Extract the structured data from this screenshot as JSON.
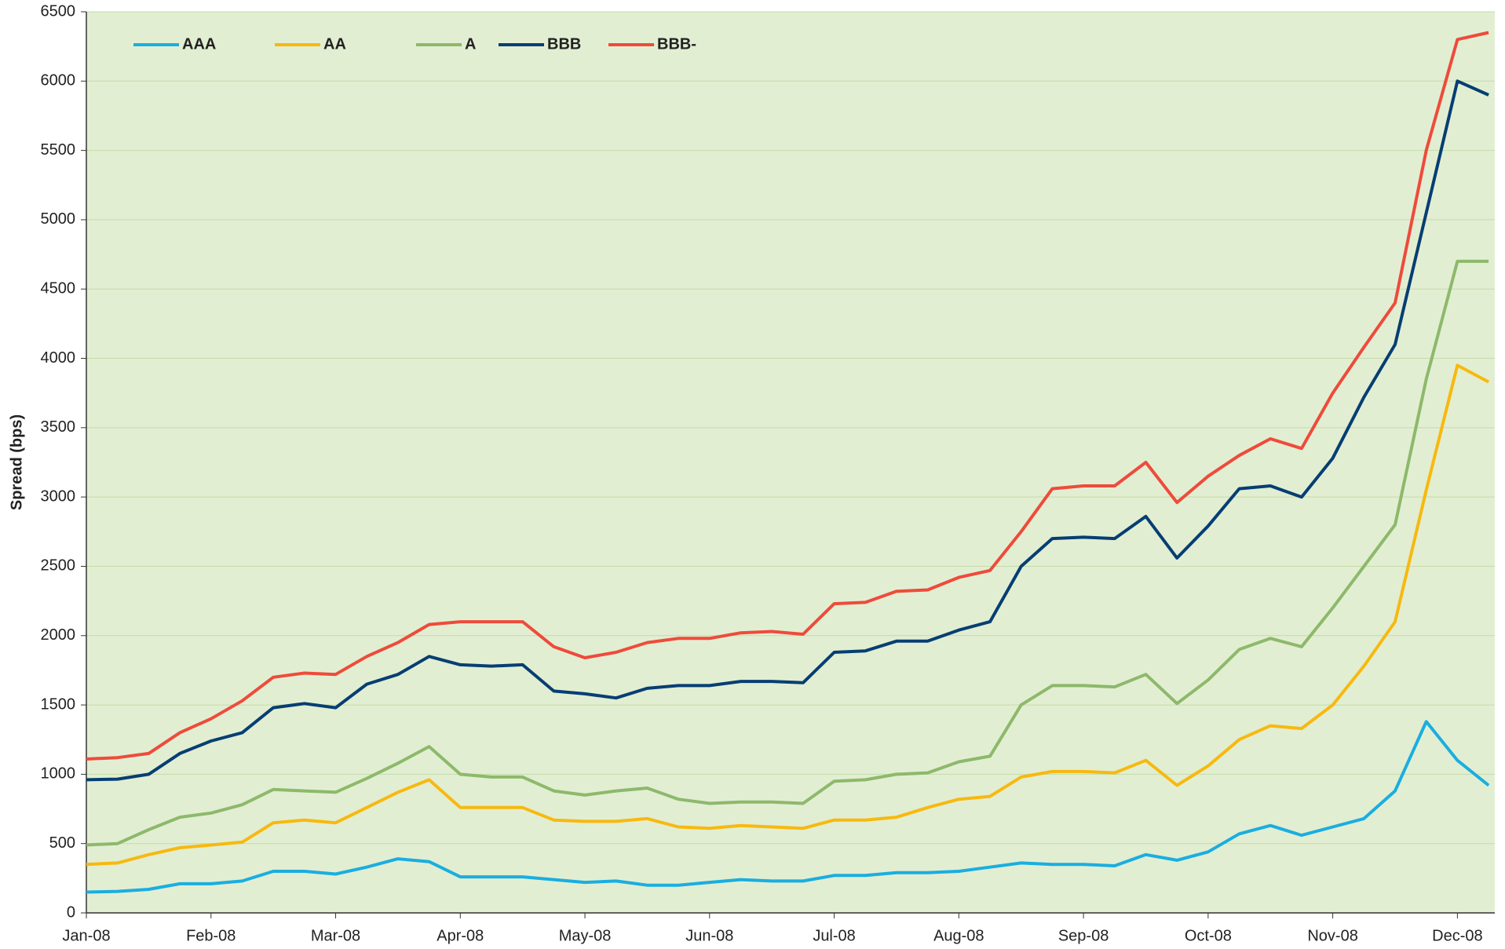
{
  "chart_data": {
    "type": "line",
    "y_label": "Spread (bps)",
    "x": [
      0,
      0.25,
      0.5,
      0.75,
      1,
      1.25,
      1.5,
      1.75,
      2,
      2.25,
      2.5,
      2.75,
      3,
      3.25,
      3.5,
      3.75,
      4,
      4.25,
      4.5,
      4.75,
      5,
      5.25,
      5.5,
      5.75,
      6,
      6.25,
      6.5,
      6.75,
      7,
      7.25,
      7.5,
      7.75,
      8,
      8.25,
      8.5,
      8.75,
      9,
      9.25,
      9.5,
      9.75,
      10,
      10.25,
      10.5,
      10.75,
      11,
      11.25
    ],
    "xlim": [
      0,
      11.3
    ],
    "xticks": [
      {
        "value": 0,
        "label": "Jan-08"
      },
      {
        "value": 1,
        "label": "Feb-08"
      },
      {
        "value": 2,
        "label": "Mar-08"
      },
      {
        "value": 3,
        "label": "Apr-08"
      },
      {
        "value": 4,
        "label": "May-08"
      },
      {
        "value": 5,
        "label": "Jun-08"
      },
      {
        "value": 6,
        "label": "Jul-08"
      },
      {
        "value": 7,
        "label": "Aug-08"
      },
      {
        "value": 8,
        "label": "Sep-08"
      },
      {
        "value": 9,
        "label": "Oct-08"
      },
      {
        "value": 10,
        "label": "Nov-08"
      },
      {
        "value": 11,
        "label": "Dec-08"
      }
    ],
    "ylim": [
      0,
      6500
    ],
    "yticks": [
      0,
      500,
      1000,
      1500,
      2000,
      2500,
      3000,
      3500,
      4000,
      4500,
      5000,
      5500,
      6000,
      6500
    ],
    "grid": true,
    "legend": "upper left",
    "series": [
      {
        "name": "AAA",
        "color": "#1aaee0",
        "values": [
          150,
          155,
          170,
          210,
          210,
          230,
          300,
          300,
          280,
          330,
          390,
          370,
          260,
          260,
          260,
          240,
          220,
          230,
          200,
          200,
          220,
          240,
          230,
          230,
          270,
          270,
          290,
          290,
          300,
          330,
          360,
          350,
          350,
          340,
          420,
          380,
          440,
          570,
          630,
          560,
          620,
          680,
          880,
          1380,
          1100,
          920
        ]
      },
      {
        "name": "AA",
        "color": "#f7b90f",
        "values": [
          350,
          360,
          420,
          470,
          490,
          510,
          650,
          670,
          650,
          760,
          870,
          960,
          760,
          760,
          760,
          670,
          660,
          660,
          680,
          620,
          610,
          630,
          620,
          610,
          670,
          670,
          690,
          760,
          820,
          840,
          980,
          1020,
          1020,
          1010,
          1100,
          920,
          1060,
          1250,
          1350,
          1330,
          1500,
          1780,
          2100,
          3050,
          3950,
          3830
        ]
      },
      {
        "name": "A",
        "color": "#8db96b",
        "values": [
          490,
          500,
          600,
          690,
          720,
          780,
          890,
          880,
          870,
          970,
          1080,
          1200,
          1000,
          980,
          980,
          880,
          850,
          880,
          900,
          820,
          790,
          800,
          800,
          790,
          950,
          960,
          1000,
          1010,
          1090,
          1130,
          1500,
          1640,
          1640,
          1630,
          1720,
          1510,
          1680,
          1900,
          1980,
          1920,
          2200,
          2500,
          2800,
          3850,
          4700,
          4700
        ]
      },
      {
        "name": "BBB",
        "color": "#063e73",
        "values": [
          960,
          965,
          1000,
          1150,
          1240,
          1300,
          1480,
          1510,
          1480,
          1650,
          1720,
          1850,
          1790,
          1780,
          1790,
          1600,
          1580,
          1550,
          1620,
          1640,
          1640,
          1670,
          1670,
          1660,
          1880,
          1890,
          1960,
          1960,
          2040,
          2100,
          2500,
          2700,
          2710,
          2700,
          2860,
          2560,
          2790,
          3060,
          3080,
          3000,
          3280,
          3720,
          4100,
          5050,
          6000,
          5900
        ]
      },
      {
        "name": "BBB-",
        "color": "#ee4b3b",
        "values": [
          1110,
          1120,
          1150,
          1300,
          1400,
          1530,
          1700,
          1730,
          1720,
          1850,
          1950,
          2080,
          2100,
          2100,
          2100,
          1920,
          1840,
          1880,
          1950,
          1980,
          1980,
          2020,
          2030,
          2010,
          2230,
          2240,
          2320,
          2330,
          2420,
          2470,
          2750,
          3060,
          3080,
          3080,
          3250,
          2960,
          3150,
          3300,
          3420,
          3350,
          3750,
          4080,
          4400,
          5500,
          6300,
          6350
        ]
      }
    ]
  }
}
